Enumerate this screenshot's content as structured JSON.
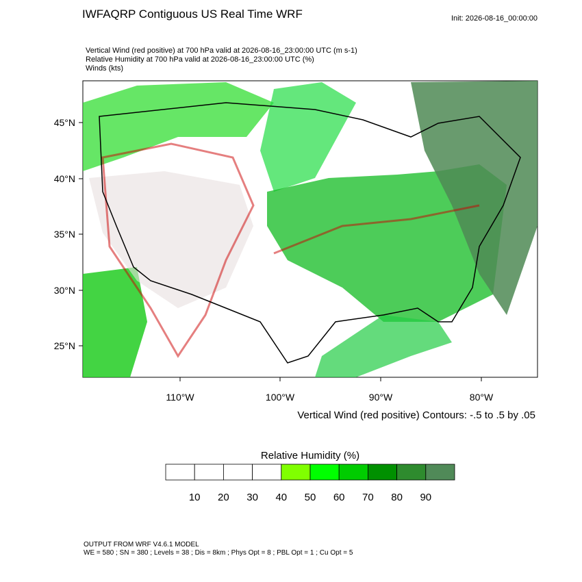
{
  "header": {
    "title": "IWFAQRP Contiguous US Real Time WRF",
    "init": "Init: 2026-08-16_00:00:00",
    "fields": [
      "Vertical Wind (red positive) at 700 hPa valid at 2026-08-16_23:00:00 UTC   (m s-1)",
      "Relative Humidity at 700 hPa valid at 2026-08-16_23:00:00 UTC   (%)",
      "Winds   (kts)"
    ]
  },
  "map": {
    "lat_labels": [
      "45°N",
      "40°N",
      "35°N",
      "30°N",
      "25°N"
    ],
    "lon_labels": [
      "110°W",
      "100°W",
      "90°W",
      "80°W"
    ],
    "contour_note": "Vertical Wind (red positive) Contours: -.5 to .5 by .05"
  },
  "colorbar": {
    "title": "Relative Humidity  (%)",
    "labels": [
      10,
      20,
      30,
      40,
      50,
      60,
      70,
      80,
      90
    ],
    "colors": [
      "#ffffff",
      "#ffffff",
      "#ffffff",
      "#ffffff",
      "#80ff00",
      "#00ff00",
      "#00cc00",
      "#009000",
      "#2e8b2e",
      "#508a58"
    ]
  },
  "footer": {
    "lines": [
      "OUTPUT FROM WRF V4.6.1 MODEL",
      "WE = 580 ; SN = 380 ; Levels = 38 ; Dis = 8km ; Phys Opt = 8 ; PBL Opt = 1 ; Cu Opt = 5"
    ]
  }
}
